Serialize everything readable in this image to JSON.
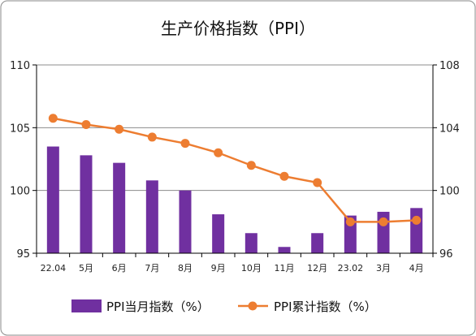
{
  "chart_data": {
    "type": "bar",
    "title": "生产价格指数（PPI）",
    "categories": [
      "22.04",
      "5月",
      "6月",
      "7月",
      "8月",
      "9月",
      "10月",
      "11月",
      "12月",
      "23.02",
      "3月",
      "4月"
    ],
    "series": [
      {
        "name": "PPI当月指数（%）",
        "type": "bar",
        "axis": "left",
        "color": "#7030A0",
        "values": [
          103.5,
          102.8,
          102.2,
          100.8,
          100.0,
          98.1,
          96.6,
          95.5,
          96.6,
          98.0,
          98.3,
          98.6
        ]
      },
      {
        "name": "PPI累计指数（%）",
        "type": "line",
        "axis": "right",
        "color": "#ED7D31",
        "values": [
          104.6,
          104.2,
          103.9,
          103.4,
          103.0,
          102.4,
          101.6,
          100.9,
          100.5,
          98.0,
          98.0,
          98.1
        ]
      }
    ],
    "y_left": {
      "range": [
        95,
        110
      ],
      "ticks": [
        "95",
        "100",
        "105",
        "110"
      ]
    },
    "y_right": {
      "range": [
        96,
        108
      ],
      "ticks": [
        "96",
        "100",
        "104",
        "108"
      ]
    },
    "grid": true,
    "legend": "bottom"
  }
}
